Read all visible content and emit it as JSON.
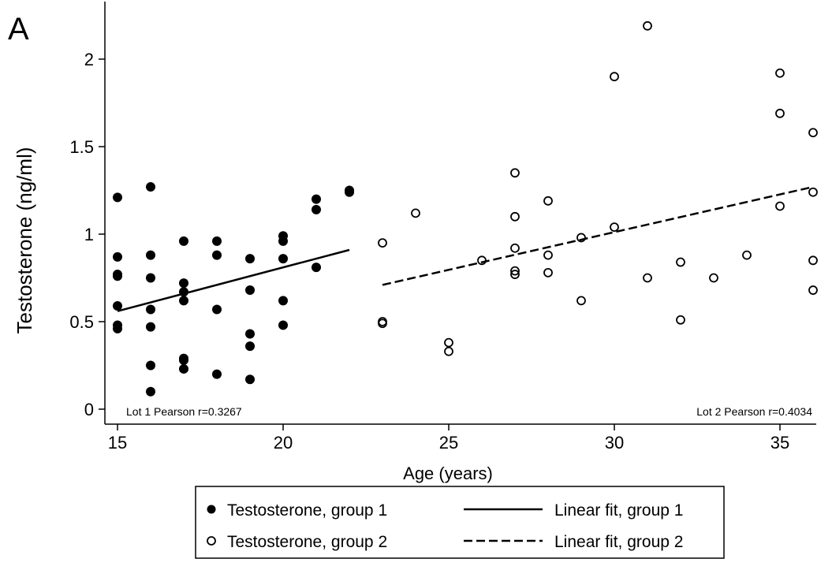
{
  "chart_data": {
    "type": "scatter",
    "panel_label": "A",
    "xlabel": "Age (years)",
    "ylabel": "Testosterone (ng/ml)",
    "xlim": [
      14.6,
      36.3
    ],
    "ylim": [
      -0.08,
      2.34
    ],
    "xticks": [
      15,
      20,
      25,
      30,
      35
    ],
    "yticks": [
      0,
      0.5,
      1,
      1.5,
      2
    ],
    "ytick_labels": [
      "0",
      "0.5",
      "1",
      "1.5",
      "2"
    ],
    "grid": false,
    "annotations": [
      "Lot 1 Pearson r=0.3267",
      "Lot 2 Pearson r=0.4034"
    ],
    "legend_placement": "bottom",
    "series": [
      {
        "name": "Testosterone, group 1",
        "marker": "filled-circle",
        "points": [
          [
            15,
            1.21
          ],
          [
            15,
            0.87
          ],
          [
            15,
            0.77
          ],
          [
            15,
            0.76
          ],
          [
            15,
            0.59
          ],
          [
            15,
            0.48
          ],
          [
            15,
            0.46
          ],
          [
            16,
            1.27
          ],
          [
            16,
            0.88
          ],
          [
            16,
            0.75
          ],
          [
            16,
            0.57
          ],
          [
            16,
            0.47
          ],
          [
            16,
            0.25
          ],
          [
            16,
            0.1
          ],
          [
            17,
            0.96
          ],
          [
            17,
            0.72
          ],
          [
            17,
            0.67
          ],
          [
            17,
            0.62
          ],
          [
            17,
            0.29
          ],
          [
            17,
            0.28
          ],
          [
            17,
            0.23
          ],
          [
            18,
            0.96
          ],
          [
            18,
            0.88
          ],
          [
            18,
            0.57
          ],
          [
            18,
            0.2
          ],
          [
            19,
            0.86
          ],
          [
            19,
            0.68
          ],
          [
            19,
            0.43
          ],
          [
            19,
            0.36
          ],
          [
            19,
            0.17
          ],
          [
            20,
            0.99
          ],
          [
            20,
            0.96
          ],
          [
            20,
            0.86
          ],
          [
            20,
            0.62
          ],
          [
            20,
            0.48
          ],
          [
            21,
            1.2
          ],
          [
            21,
            1.14
          ],
          [
            21,
            0.81
          ],
          [
            22,
            1.25
          ],
          [
            22,
            1.24
          ]
        ]
      },
      {
        "name": "Testosterone, group 2",
        "marker": "hollow-circle",
        "points": [
          [
            23,
            0.95
          ],
          [
            23,
            0.5
          ],
          [
            23,
            0.49
          ],
          [
            24,
            1.12
          ],
          [
            25,
            0.38
          ],
          [
            25,
            0.33
          ],
          [
            26,
            0.85
          ],
          [
            27,
            1.35
          ],
          [
            27,
            1.1
          ],
          [
            27,
            0.92
          ],
          [
            27,
            0.79
          ],
          [
            27,
            0.77
          ],
          [
            28,
            1.19
          ],
          [
            28,
            0.88
          ],
          [
            28,
            0.78
          ],
          [
            29,
            0.98
          ],
          [
            29,
            0.62
          ],
          [
            30,
            1.9
          ],
          [
            30,
            1.04
          ],
          [
            31,
            2.19
          ],
          [
            31,
            0.75
          ],
          [
            32,
            0.84
          ],
          [
            32,
            0.51
          ],
          [
            33,
            0.75
          ],
          [
            34,
            0.88
          ],
          [
            35,
            1.92
          ],
          [
            35,
            1.69
          ],
          [
            35,
            1.16
          ],
          [
            36,
            1.58
          ],
          [
            36,
            1.24
          ],
          [
            36,
            0.85
          ],
          [
            36,
            0.68
          ]
        ]
      },
      {
        "name": "Linear fit, group 1",
        "style": "solid",
        "line": [
          [
            15,
            0.56
          ],
          [
            22,
            0.91
          ]
        ]
      },
      {
        "name": "Linear fit, group 2",
        "style": "dashed",
        "line": [
          [
            23,
            0.71
          ],
          [
            36,
            1.27
          ]
        ]
      }
    ]
  }
}
